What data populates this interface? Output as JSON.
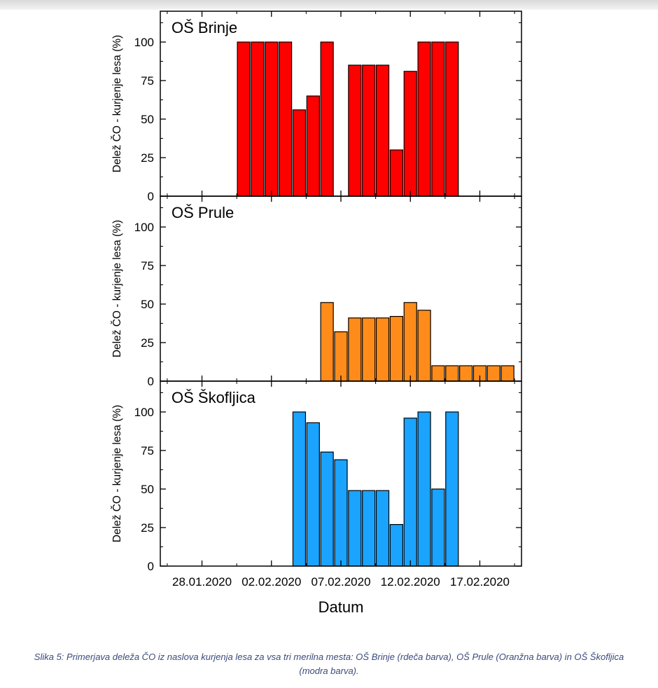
{
  "chart_data": {
    "type": "bar",
    "xlabel": "Datum",
    "ylabel": "Delež ČO - kurjenje lesa (%)",
    "ylim": [
      0,
      120
    ],
    "yticks": [
      0,
      25,
      50,
      75,
      100
    ],
    "xlim_days": [
      -3,
      23
    ],
    "xtick_labels": [
      "28.01.2020",
      "02.02.2020",
      "07.02.2020",
      "12.02.2020",
      "17.02.2020"
    ],
    "xtick_days": [
      0,
      5,
      10,
      15,
      20
    ],
    "panels": [
      {
        "title": "OŠ Brinje",
        "color": "#ff0000",
        "bars": [
          {
            "day": 3,
            "value": 100
          },
          {
            "day": 4,
            "value": 100
          },
          {
            "day": 5,
            "value": 100
          },
          {
            "day": 6,
            "value": 100
          },
          {
            "day": 7,
            "value": 56
          },
          {
            "day": 8,
            "value": 65
          },
          {
            "day": 9,
            "value": 100
          },
          {
            "day": 11,
            "value": 85
          },
          {
            "day": 12,
            "value": 85
          },
          {
            "day": 13,
            "value": 85
          },
          {
            "day": 14,
            "value": 30
          },
          {
            "day": 15,
            "value": 81
          },
          {
            "day": 16,
            "value": 100
          },
          {
            "day": 17,
            "value": 100
          },
          {
            "day": 18,
            "value": 100
          }
        ]
      },
      {
        "title": "OŠ Prule",
        "color": "#ff8c1a",
        "bars": [
          {
            "day": 9,
            "value": 51
          },
          {
            "day": 10,
            "value": 32
          },
          {
            "day": 11,
            "value": 41
          },
          {
            "day": 12,
            "value": 41
          },
          {
            "day": 13,
            "value": 41
          },
          {
            "day": 14,
            "value": 42
          },
          {
            "day": 15,
            "value": 51
          },
          {
            "day": 16,
            "value": 46
          },
          {
            "day": 17,
            "value": 10
          },
          {
            "day": 18,
            "value": 10
          },
          {
            "day": 19,
            "value": 10
          },
          {
            "day": 20,
            "value": 10
          },
          {
            "day": 21,
            "value": 10
          },
          {
            "day": 22,
            "value": 10
          }
        ]
      },
      {
        "title": "OŠ Škofljica",
        "color": "#1aa3ff",
        "bars": [
          {
            "day": 7,
            "value": 100
          },
          {
            "day": 8,
            "value": 93
          },
          {
            "day": 9,
            "value": 74
          },
          {
            "day": 10,
            "value": 69
          },
          {
            "day": 11,
            "value": 49
          },
          {
            "day": 12,
            "value": 49
          },
          {
            "day": 13,
            "value": 49
          },
          {
            "day": 14,
            "value": 27
          },
          {
            "day": 15,
            "value": 96
          },
          {
            "day": 16,
            "value": 100
          },
          {
            "day": 17,
            "value": 50
          },
          {
            "day": 18,
            "value": 100
          }
        ]
      }
    ]
  },
  "caption": "Slika 5: Primerjava deleža ČO iz naslova kurjenja lesa za vsa tri merilna mesta: OŠ Brinje (rdeča barva), OŠ Prule (Oranžna barva) in OŠ Škofljica (modra barva)."
}
